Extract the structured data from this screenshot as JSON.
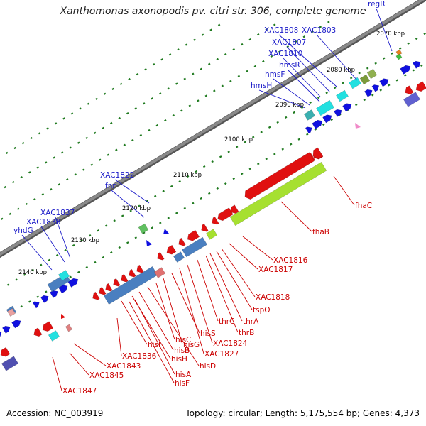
{
  "title": "Xanthomonas axonopodis pv. citri str. 306, complete genome",
  "accession": "Accession: NC_003919",
  "topology": "Topology: circular; Length: 5,175,554 bp; Genes: 4,373",
  "tick_labels": [
    "2070 kbp",
    "2080 kbp",
    "2090 kbp",
    "2100 kbp",
    "2110 kbp",
    "2120 kbp",
    "2130 kbp",
    "2140 kbp"
  ],
  "forward_labels": [
    "regR",
    "XAC1803",
    "XAC1808",
    "XAC1807",
    "XAC1810",
    "hmsR",
    "hmsF",
    "hmsH",
    "XAC1822",
    "fnr",
    "XAC1837",
    "XAC1838",
    "yhdG"
  ],
  "reverse_labels": [
    "fhaC",
    "fhaB",
    "XAC1816",
    "XAC1817",
    "XAC1818",
    "tspO",
    "thrA",
    "thrB",
    "thrC",
    "XAC1824",
    "XAC1827",
    "hisS",
    "hisG",
    "hisC",
    "hisD",
    "hisB",
    "hisH",
    "hisI",
    "hisA",
    "hisF",
    "XAC1836",
    "XAC1843",
    "XAC1845",
    "XAC1847"
  ],
  "colors": {
    "backbone": "#8a8a8a",
    "forward_gene": "#1010e0",
    "reverse_gene": "#e01010",
    "forward_label": "#1a1ac8",
    "reverse_label": "#cc0000",
    "cds_green": "#a6e030",
    "cds_blue": "#4a7fc0",
    "cds_cyan": "#22e0e0",
    "tick_green": "#1f7a1f"
  }
}
